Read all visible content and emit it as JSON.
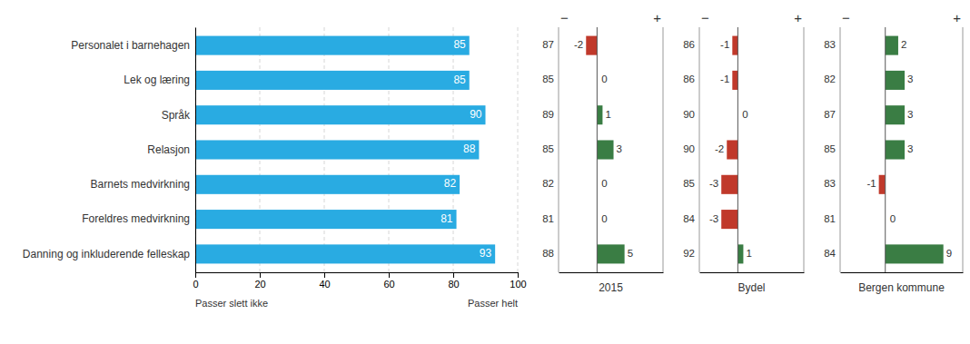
{
  "chart_data": [
    {
      "type": "bar",
      "orientation": "horizontal",
      "categories": [
        "Danning og inkluderende felleskap",
        "Foreldres medvirkning",
        "Barnets medvirkning",
        "Relasjon",
        "Språk",
        "Lek og læring",
        "Personalet i barnehagen"
      ],
      "values": [
        93,
        81,
        82,
        88,
        90,
        85,
        85
      ],
      "color": "#29ABE2",
      "xlim": [
        0,
        100
      ],
      "xticks": [
        0,
        20,
        40,
        60,
        80,
        100
      ],
      "grid": true,
      "data_labels": true,
      "annotations": [
        "Passer slett ikke",
        "Passer helt"
      ]
    },
    {
      "type": "bar",
      "orientation": "horizontal",
      "values": [
        5,
        0,
        0,
        3,
        1,
        0,
        -2
      ],
      "colors": [
        "#3A7D44",
        null,
        null,
        "#3A7D44",
        "#3A7D44",
        null,
        "#C0392B"
      ],
      "scores": [
        88,
        81,
        82,
        85,
        89,
        85,
        87
      ],
      "xlim": [
        -7,
        12
      ],
      "xticks": [],
      "tick_labels": false,
      "data_labels": true,
      "xlabel": "2015",
      "annotations": [
        "−",
        "+"
      ]
    },
    {
      "type": "bar",
      "orientation": "horizontal",
      "values": [
        1,
        -3,
        -3,
        -2,
        0,
        -1,
        -1
      ],
      "colors": [
        "#3A7D44",
        "#C0392B",
        "#C0392B",
        "#C0392B",
        null,
        "#C0392B",
        "#C0392B"
      ],
      "scores": [
        92,
        84,
        85,
        90,
        90,
        86,
        86
      ],
      "xlim": [
        -7,
        12
      ],
      "xticks": [],
      "tick_labels": false,
      "data_labels": true,
      "xlabel": "Bydel",
      "annotations": [
        "−",
        "+"
      ]
    },
    {
      "type": "bar",
      "orientation": "horizontal",
      "values": [
        9,
        0,
        -1,
        3,
        3,
        3,
        2
      ],
      "colors": [
        "#3A7D44",
        null,
        "#C0392B",
        "#3A7D44",
        "#3A7D44",
        "#3A7D44",
        "#3A7D44"
      ],
      "scores": [
        84,
        81,
        83,
        85,
        87,
        82,
        83
      ],
      "xlim": [
        -7,
        12
      ],
      "xticks": [],
      "tick_labels": false,
      "data_labels": true,
      "xlabel": "Bergen kommune",
      "annotations": [
        "−",
        "+"
      ]
    }
  ]
}
